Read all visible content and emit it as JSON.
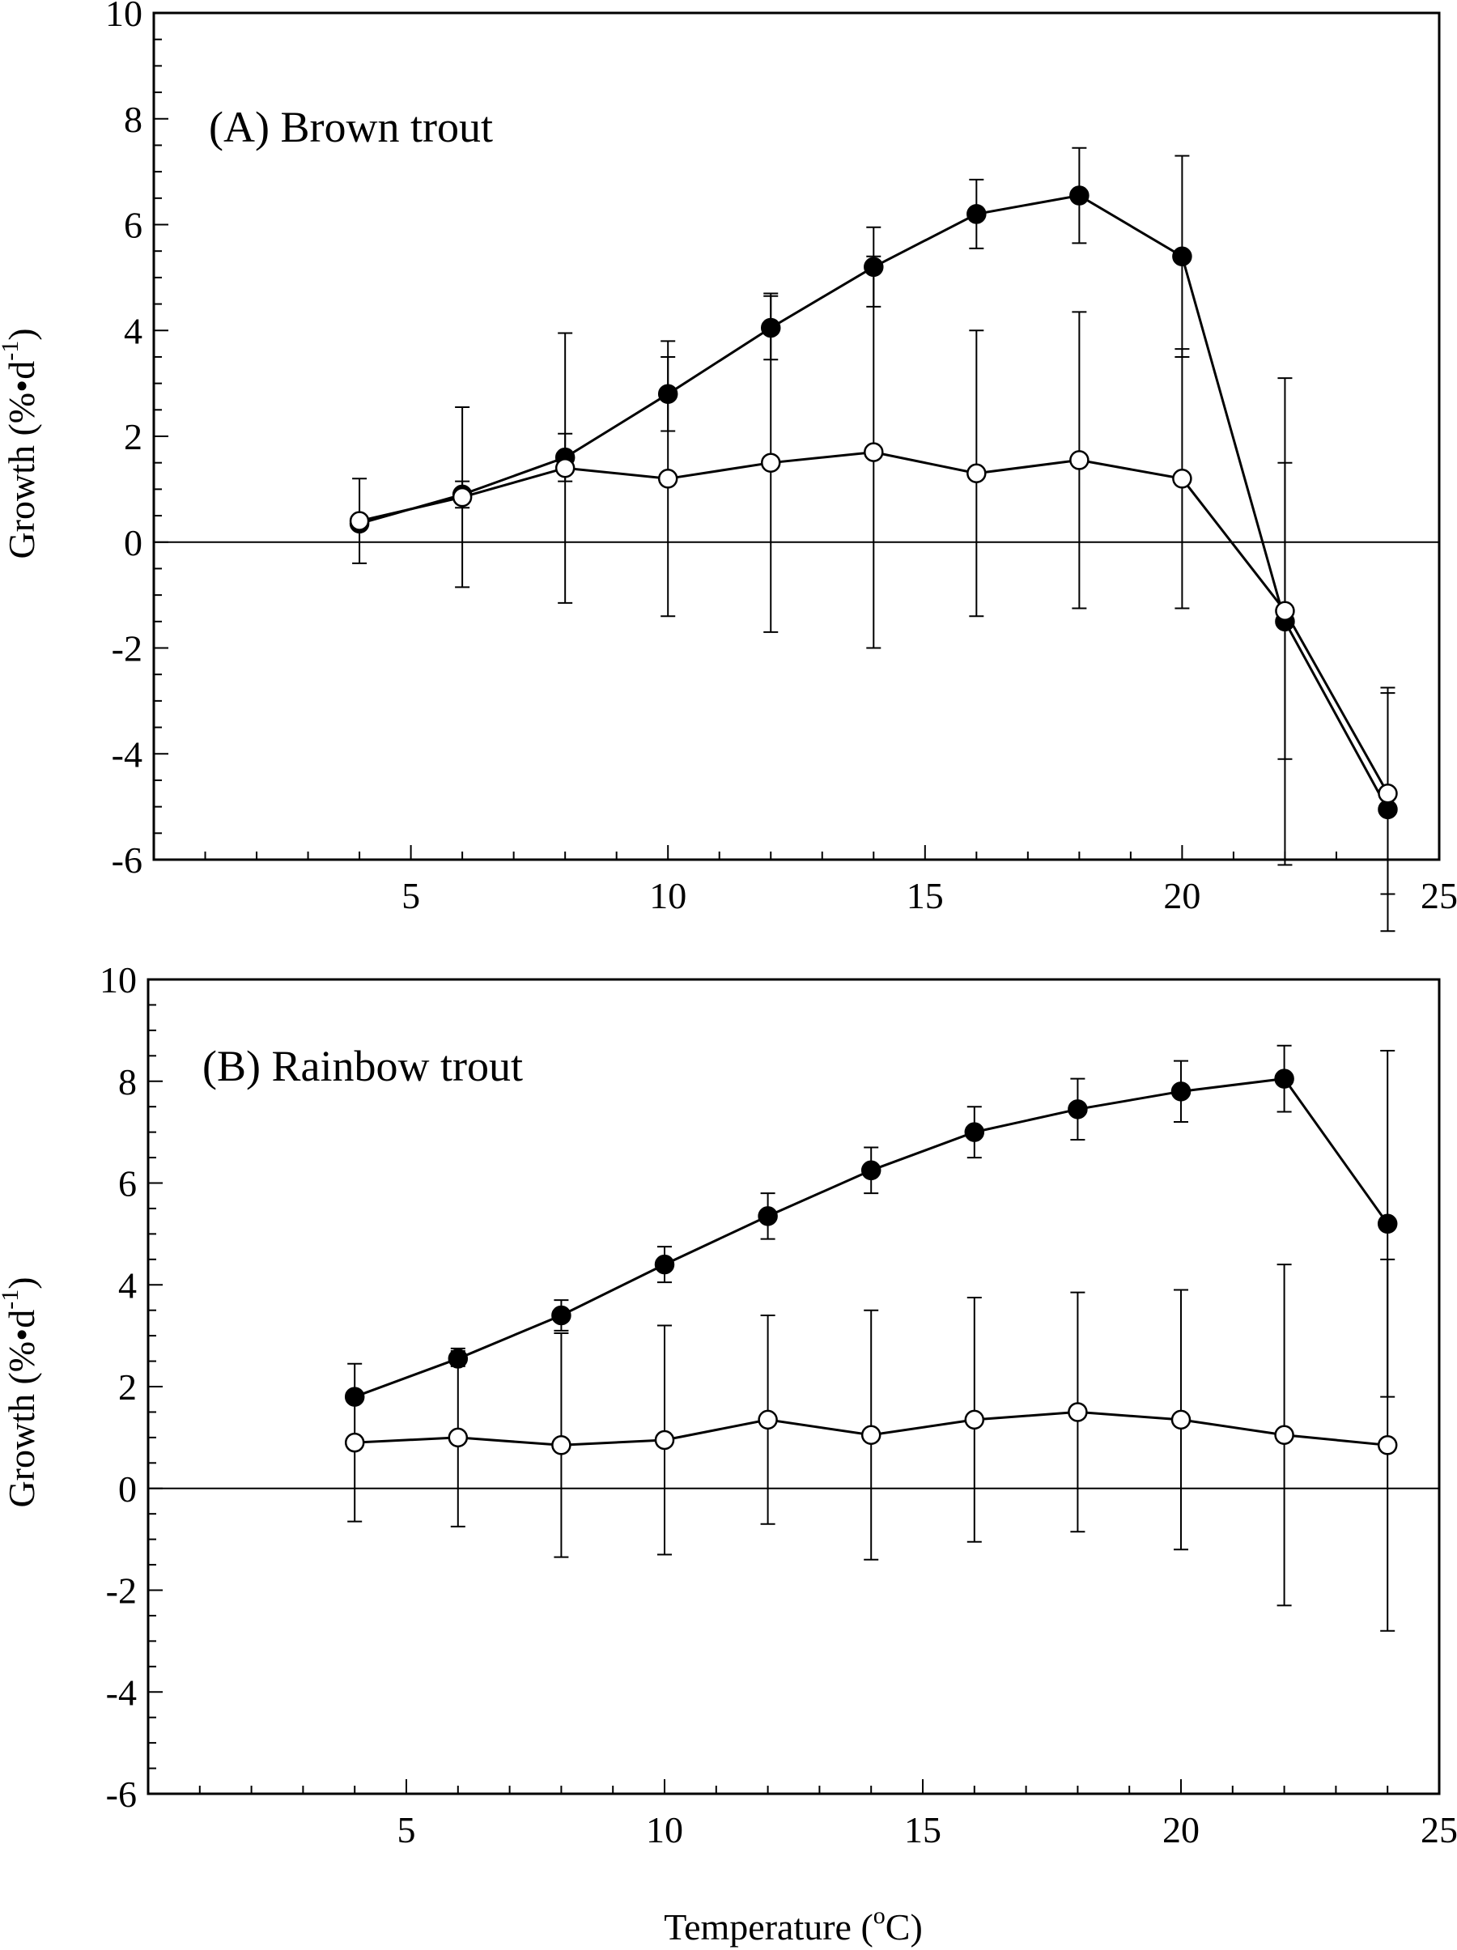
{
  "chart_data": [
    {
      "type": "line",
      "panel_label": "(A) Brown trout",
      "xlim": [
        0,
        25
      ],
      "ylim": [
        -6,
        10
      ],
      "xticks": [
        5,
        10,
        15,
        20,
        25
      ],
      "yticks": [
        -6,
        -4,
        -2,
        0,
        2,
        4,
        6,
        8,
        10
      ],
      "ylabel": "Growth (%•d",
      "ylabel_sup": "-1",
      "ylabel_close": ")",
      "reference_line_y": 0,
      "series": [
        {
          "marker": "filled-circle",
          "x": [
            4,
            6,
            8,
            10,
            12,
            14,
            16,
            18,
            20,
            22,
            24
          ],
          "y": [
            0.35,
            0.9,
            1.6,
            2.8,
            4.05,
            5.2,
            6.2,
            6.55,
            5.4,
            -1.5,
            -5.05
          ],
          "err": [
            0.1,
            0.25,
            0.45,
            0.7,
            0.6,
            0.75,
            0.65,
            0.9,
            1.9,
            4.6,
            2.3
          ]
        },
        {
          "marker": "open-circle",
          "x": [
            4,
            6,
            8,
            10,
            12,
            14,
            16,
            18,
            20,
            22,
            24
          ],
          "y": [
            0.4,
            0.85,
            1.4,
            1.2,
            1.5,
            1.7,
            1.3,
            1.55,
            1.2,
            -1.3,
            -4.75
          ],
          "err": [
            0.8,
            1.7,
            2.55,
            2.6,
            3.2,
            3.7,
            2.7,
            2.8,
            2.45,
            2.8,
            1.9
          ]
        }
      ]
    },
    {
      "type": "line",
      "panel_label": "(B) Rainbow trout",
      "xlim": [
        0,
        25
      ],
      "ylim": [
        -6,
        10
      ],
      "xticks": [
        5,
        10,
        15,
        20,
        25
      ],
      "yticks": [
        -6,
        -4,
        -2,
        0,
        2,
        4,
        6,
        8,
        10
      ],
      "ylabel": "Growth (%•d",
      "ylabel_sup": "-1",
      "ylabel_close": ")",
      "xlabel": "Temperature (",
      "xlabel_sup": "o",
      "xlabel_close": "C)",
      "reference_line_y": 0,
      "series": [
        {
          "marker": "filled-circle",
          "x": [
            4,
            6,
            8,
            10,
            12,
            14,
            16,
            18,
            20,
            22,
            24
          ],
          "y": [
            1.8,
            2.55,
            3.4,
            4.4,
            5.35,
            6.25,
            7.0,
            7.45,
            7.8,
            8.05,
            5.2
          ],
          "err": [
            0.1,
            0.15,
            0.3,
            0.35,
            0.45,
            0.45,
            0.5,
            0.6,
            0.6,
            0.65,
            3.4
          ]
        },
        {
          "marker": "open-circle",
          "x": [
            4,
            6,
            8,
            10,
            12,
            14,
            16,
            18,
            20,
            22,
            24
          ],
          "y": [
            0.9,
            1.0,
            0.85,
            0.95,
            1.35,
            1.05,
            1.35,
            1.5,
            1.35,
            1.05,
            0.85
          ],
          "err": [
            1.55,
            1.75,
            2.2,
            2.25,
            2.05,
            2.45,
            2.4,
            2.35,
            2.55,
            3.35,
            3.65
          ]
        }
      ]
    }
  ]
}
